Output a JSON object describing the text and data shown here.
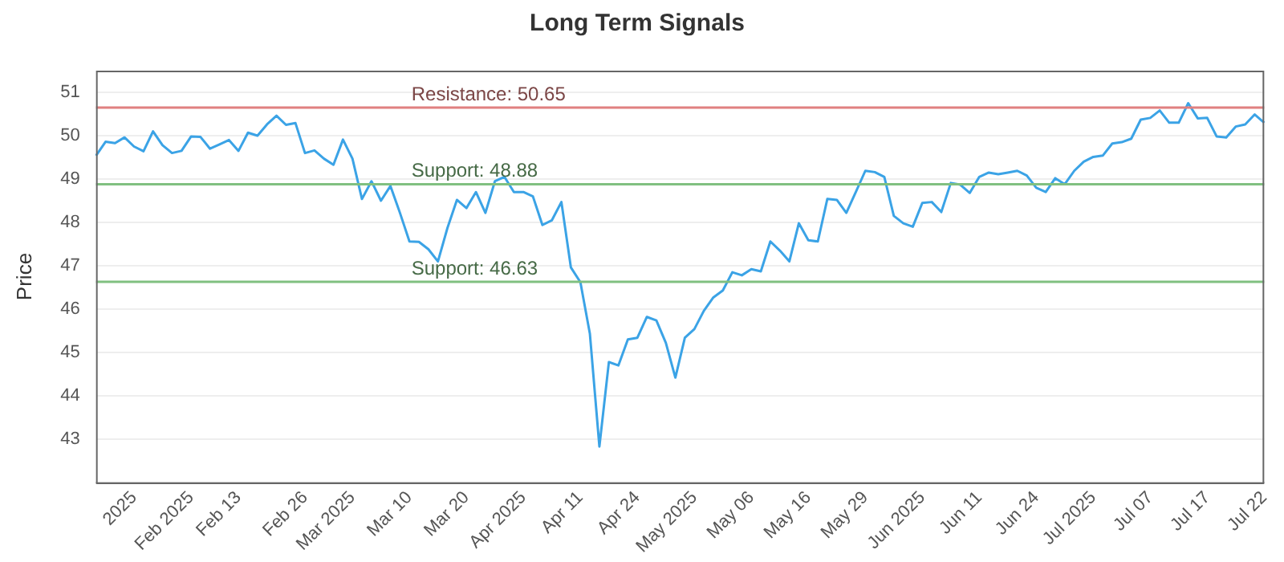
{
  "chart_data": {
    "type": "line",
    "title": "Long Term Signals",
    "ylabel": "Price",
    "categories": [
      null,
      null,
      null,
      null,
      "2025",
      null,
      null,
      null,
      null,
      null,
      "Feb 2025",
      null,
      null,
      null,
      null,
      "Feb 13",
      null,
      null,
      null,
      null,
      null,
      null,
      "Feb 26",
      null,
      null,
      null,
      null,
      "Mar 2025",
      null,
      null,
      null,
      null,
      null,
      "Mar 10",
      null,
      null,
      null,
      null,
      null,
      "Mar 20",
      null,
      null,
      null,
      null,
      null,
      "Apr 2025",
      null,
      null,
      null,
      null,
      null,
      "Apr 11",
      null,
      null,
      null,
      null,
      null,
      "Apr 24",
      null,
      null,
      null,
      null,
      null,
      "May 2025",
      null,
      null,
      null,
      null,
      null,
      "May 06",
      null,
      null,
      null,
      null,
      null,
      "May 16",
      null,
      null,
      null,
      null,
      null,
      "May 29",
      null,
      null,
      null,
      null,
      null,
      "Jun 2025",
      null,
      null,
      null,
      null,
      null,
      "Jun 11",
      null,
      null,
      null,
      null,
      null,
      "Jun 24",
      null,
      null,
      null,
      null,
      null,
      "Jul 2025",
      null,
      null,
      null,
      null,
      null,
      "Jul 07",
      null,
      null,
      null,
      null,
      null,
      "Jul 17",
      null,
      null,
      null,
      null,
      null,
      "Jul 22"
    ],
    "series": [
      {
        "color": "#3ba3e6",
        "values": [
          49.54,
          49.86,
          49.83,
          49.96,
          49.75,
          49.64,
          50.1,
          49.78,
          49.6,
          49.65,
          49.98,
          49.97,
          49.7,
          49.8,
          49.9,
          49.65,
          50.07,
          50.0,
          50.26,
          50.46,
          50.25,
          50.29,
          49.6,
          49.66,
          49.47,
          49.33,
          49.91,
          49.47,
          48.54,
          48.95,
          48.5,
          48.84,
          48.22,
          47.56,
          47.55,
          47.38,
          47.1,
          47.87,
          48.52,
          48.33,
          48.7,
          48.22,
          48.95,
          49.05,
          48.7,
          48.7,
          48.6,
          47.94,
          48.05,
          48.47,
          46.96,
          46.62,
          45.43,
          42.83,
          44.78,
          44.7,
          45.3,
          45.34,
          45.82,
          45.74,
          45.22,
          44.42,
          45.34,
          45.54,
          45.96,
          46.27,
          46.43,
          46.85,
          46.78,
          46.92,
          46.87,
          47.56,
          47.35,
          47.1,
          47.98,
          47.59,
          47.56,
          48.54,
          48.52,
          48.22,
          48.7,
          49.19,
          49.16,
          49.05,
          48.15,
          47.98,
          47.9,
          48.45,
          48.47,
          48.24,
          48.91,
          48.87,
          48.68,
          49.05,
          49.15,
          49.11,
          49.15,
          49.19,
          49.08,
          48.8,
          48.7,
          49.02,
          48.88,
          49.19,
          49.4,
          49.51,
          49.54,
          49.82,
          49.85,
          49.93,
          50.37,
          50.41,
          50.58,
          50.3,
          50.3,
          50.75,
          50.4,
          50.41,
          49.98,
          49.96,
          50.21,
          50.26,
          50.49,
          50.3
        ]
      }
    ],
    "ylim": [
      42,
      51.5
    ],
    "yticks": [
      43,
      44,
      45,
      46,
      47,
      48,
      49,
      50,
      51
    ],
    "grid": "y",
    "legend": false,
    "marker": "none",
    "line_style": "solid",
    "ref_lines": [
      {
        "axis": "y",
        "value": 50.65,
        "label": "Resistance: 50.65",
        "color": "#e08080"
      },
      {
        "axis": "y",
        "value": 48.88,
        "label": "Support: 48.88",
        "color": "#80c080"
      },
      {
        "axis": "y",
        "value": 46.63,
        "label": "Support: 46.63",
        "color": "#80c080"
      }
    ]
  }
}
